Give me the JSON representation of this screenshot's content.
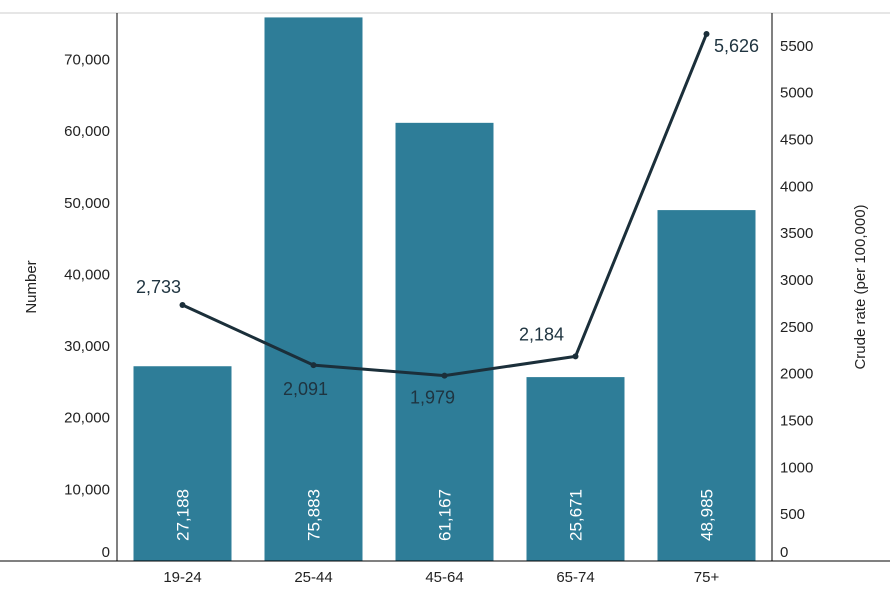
{
  "chart_data": {
    "type": "bar",
    "categories": [
      "19-24",
      "25-44",
      "45-64",
      "65-74",
      "75+"
    ],
    "series": [
      {
        "name": "Number",
        "type": "bar",
        "axis": "left",
        "values": [
          27188,
          75883,
          61167,
          25671,
          48985
        ],
        "labels": [
          "27,188",
          "75,883",
          "61,167",
          "25,671",
          "48,985"
        ]
      },
      {
        "name": "Crude rate (per 100,000)",
        "type": "line",
        "axis": "right",
        "values": [
          2733,
          2091,
          1979,
          2184,
          5626
        ],
        "labels": [
          "2,733",
          "2,091",
          "1,979",
          "2,184",
          "5,626"
        ]
      }
    ],
    "ylabel": "Number",
    "y2label": "Crude rate (per 100,000)",
    "ylim": [
      0,
      76500
    ],
    "y2lim": [
      0,
      5850
    ],
    "yticks": [
      0,
      10000,
      20000,
      30000,
      40000,
      50000,
      60000,
      70000
    ],
    "ytick_labels": [
      "0",
      "10,000",
      "20,000",
      "30,000",
      "40,000",
      "50,000",
      "60,000",
      "70,000"
    ],
    "y2ticks": [
      0,
      500,
      1000,
      1500,
      2000,
      2500,
      3000,
      3500,
      4000,
      4500,
      5000,
      5500
    ],
    "y2tick_labels": [
      "0",
      "500",
      "1000",
      "1500",
      "2000",
      "2500",
      "3000",
      "3500",
      "4000",
      "4500",
      "5000",
      "5500"
    ],
    "grid": false,
    "colors": {
      "bar": "#2e7d98",
      "line": "#1b2f3a",
      "axis": "#000000",
      "top_border": "#cccccc"
    }
  }
}
